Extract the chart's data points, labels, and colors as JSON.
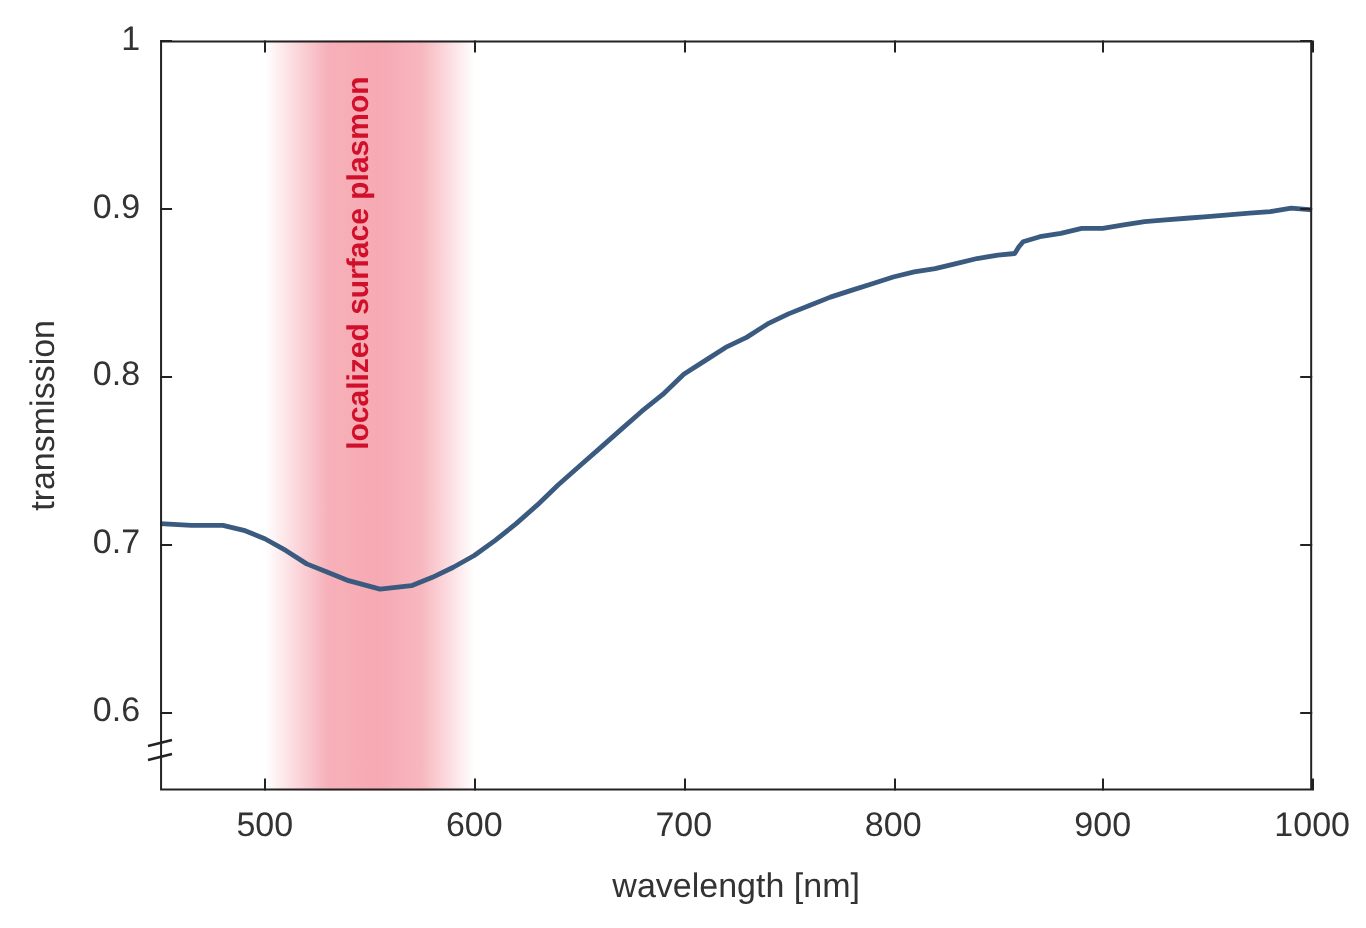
{
  "chart_data": {
    "type": "line",
    "xlabel": "wavelength [nm]",
    "ylabel": "transmission",
    "x": [
      450,
      465,
      480,
      490,
      500,
      510,
      520,
      530,
      540,
      555,
      570,
      580,
      590,
      600,
      610,
      620,
      630,
      640,
      650,
      660,
      670,
      680,
      690,
      700,
      710,
      720,
      730,
      740,
      750,
      760,
      770,
      780,
      790,
      800,
      810,
      820,
      830,
      840,
      850,
      858,
      860,
      862,
      870,
      880,
      890,
      900,
      910,
      920,
      930,
      940,
      950,
      960,
      970,
      980,
      990,
      1000
    ],
    "series": [
      {
        "color": "#3a5a80",
        "values": [
          0.712,
          0.711,
          0.711,
          0.708,
          0.703,
          0.696,
          0.688,
          0.683,
          0.678,
          0.673,
          0.675,
          0.68,
          0.686,
          0.693,
          0.702,
          0.712,
          0.723,
          0.735,
          0.746,
          0.757,
          0.768,
          0.779,
          0.789,
          0.801,
          0.809,
          0.817,
          0.823,
          0.831,
          0.837,
          0.842,
          0.847,
          0.851,
          0.855,
          0.859,
          0.862,
          0.864,
          0.867,
          0.87,
          0.872,
          0.873,
          0.877,
          0.88,
          0.883,
          0.885,
          0.888,
          0.888,
          0.89,
          0.892,
          0.893,
          0.894,
          0.895,
          0.896,
          0.897,
          0.898,
          0.9,
          0.899
        ]
      }
    ],
    "xlim": [
      450,
      1000
    ],
    "xticks": [
      500,
      600,
      700,
      800,
      900,
      1000
    ],
    "ylim": [
      0.553,
      1
    ],
    "yticks": [
      0.6,
      0.7,
      0.8,
      0.9,
      1
    ],
    "grid": false,
    "legend": false,
    "marker": "none",
    "line_style": "solid",
    "bands": [
      {
        "axis": "x",
        "from": 500,
        "to": 600,
        "label": "localized surface plasmon",
        "color": "#f07080"
      }
    ]
  }
}
